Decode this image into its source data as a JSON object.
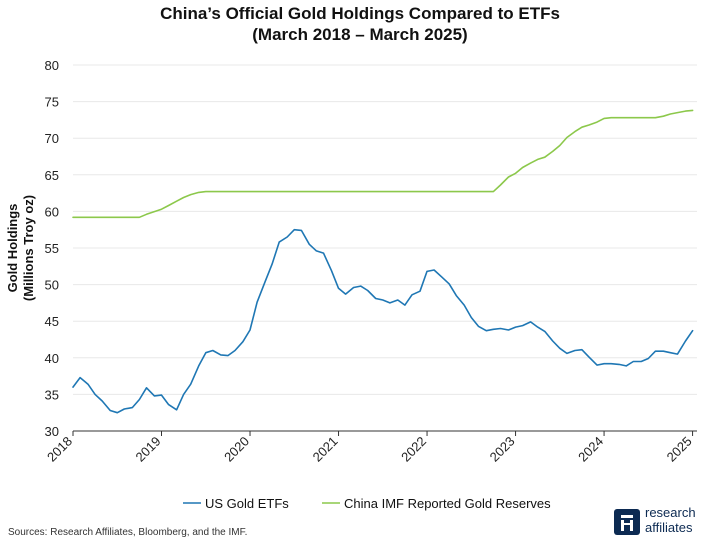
{
  "colors": {
    "us_etf": "#1f77b4",
    "china": "#8cc84b",
    "grid": "#e8e8e8",
    "axis": "#333333",
    "brand": "#0c2a52"
  },
  "chart_data": {
    "type": "line",
    "title": [
      "China’s Official Gold Holdings Compared to ETFs",
      "(March 2018 – March 2025)"
    ],
    "xlabel": "",
    "ylabel": [
      "Gold Holdings",
      "(Millions Troy oz)"
    ],
    "xlim": [
      2018,
      2025.05
    ],
    "ylim": [
      30,
      80
    ],
    "x_ticks": [
      2018,
      2019,
      2020,
      2021,
      2022,
      2023,
      2024,
      2025
    ],
    "y_ticks": [
      30,
      35,
      40,
      45,
      50,
      55,
      60,
      65,
      70,
      75,
      80
    ],
    "grid": true,
    "legend_position": "bottom",
    "series": [
      {
        "name": "US Gold ETFs",
        "color": "#1f77b4",
        "x": [
          2018.0,
          2018.08,
          2018.17,
          2018.25,
          2018.33,
          2018.42,
          2018.5,
          2018.58,
          2018.67,
          2018.75,
          2018.83,
          2018.92,
          2019.0,
          2019.08,
          2019.17,
          2019.25,
          2019.33,
          2019.42,
          2019.5,
          2019.58,
          2019.67,
          2019.75,
          2019.83,
          2019.92,
          2020.0,
          2020.08,
          2020.17,
          2020.25,
          2020.33,
          2020.42,
          2020.5,
          2020.58,
          2020.67,
          2020.75,
          2020.83,
          2020.92,
          2021.0,
          2021.08,
          2021.17,
          2021.25,
          2021.33,
          2021.42,
          2021.5,
          2021.58,
          2021.67,
          2021.75,
          2021.83,
          2021.92,
          2022.0,
          2022.08,
          2022.17,
          2022.25,
          2022.33,
          2022.42,
          2022.5,
          2022.58,
          2022.67,
          2022.75,
          2022.83,
          2022.92,
          2023.0,
          2023.08,
          2023.17,
          2023.25,
          2023.33,
          2023.42,
          2023.5,
          2023.58,
          2023.67,
          2023.75,
          2023.83,
          2023.92,
          2024.0,
          2024.08,
          2024.17,
          2024.25,
          2024.33,
          2024.42,
          2024.5,
          2024.58,
          2024.67,
          2024.75,
          2024.83,
          2024.92,
          2025.0
        ],
        "values": [
          36.0,
          37.3,
          36.4,
          35.0,
          34.1,
          32.8,
          32.5,
          33.0,
          33.2,
          34.3,
          35.9,
          34.8,
          34.9,
          33.6,
          32.9,
          35.0,
          36.4,
          38.9,
          40.7,
          41.0,
          40.4,
          40.3,
          41.0,
          42.2,
          43.8,
          47.6,
          50.4,
          52.8,
          55.8,
          56.5,
          57.5,
          57.4,
          55.5,
          54.6,
          54.3,
          51.9,
          49.5,
          48.7,
          49.6,
          49.8,
          49.2,
          48.1,
          47.9,
          47.5,
          47.9,
          47.2,
          48.6,
          49.1,
          51.8,
          52.0,
          51.0,
          50.1,
          48.5,
          47.2,
          45.5,
          44.3,
          43.7,
          43.9,
          44.0,
          43.8,
          44.2,
          44.4,
          44.9,
          44.2,
          43.6,
          42.3,
          41.3,
          40.6,
          41.0,
          41.1,
          40.1,
          39.0,
          39.2,
          39.2,
          39.1,
          38.9,
          39.5,
          39.5,
          39.9,
          40.9,
          40.9,
          40.7,
          40.5,
          42.3,
          43.7
        ]
      },
      {
        "name": "China IMF Reported Gold Reserves",
        "color": "#8cc84b",
        "x": [
          2018.0,
          2018.75,
          2018.83,
          2019.0,
          2019.08,
          2019.17,
          2019.25,
          2019.33,
          2019.42,
          2019.5,
          2019.58,
          2022.75,
          2022.83,
          2022.92,
          2023.0,
          2023.08,
          2023.17,
          2023.25,
          2023.33,
          2023.42,
          2023.5,
          2023.58,
          2023.67,
          2023.75,
          2023.83,
          2023.92,
          2024.0,
          2024.08,
          2024.17,
          2024.25,
          2024.33,
          2024.42,
          2024.5,
          2024.58,
          2024.67,
          2024.75,
          2024.83,
          2024.92,
          2025.0
        ],
        "values": [
          59.2,
          59.2,
          59.6,
          60.3,
          60.8,
          61.4,
          61.9,
          62.3,
          62.6,
          62.7,
          62.7,
          62.7,
          63.6,
          64.7,
          65.2,
          66.0,
          66.6,
          67.1,
          67.4,
          68.2,
          69.0,
          70.1,
          70.9,
          71.5,
          71.8,
          72.2,
          72.7,
          72.8,
          72.8,
          72.8,
          72.8,
          72.8,
          72.8,
          72.8,
          73.0,
          73.3,
          73.5,
          73.7,
          73.8
        ]
      }
    ]
  },
  "source_note": "Sources: Research Affiliates, Bloomberg, and the IMF.",
  "logo": {
    "icon": "research-affiliates-logo-icon",
    "line1": "research",
    "line2": "affiliates"
  }
}
